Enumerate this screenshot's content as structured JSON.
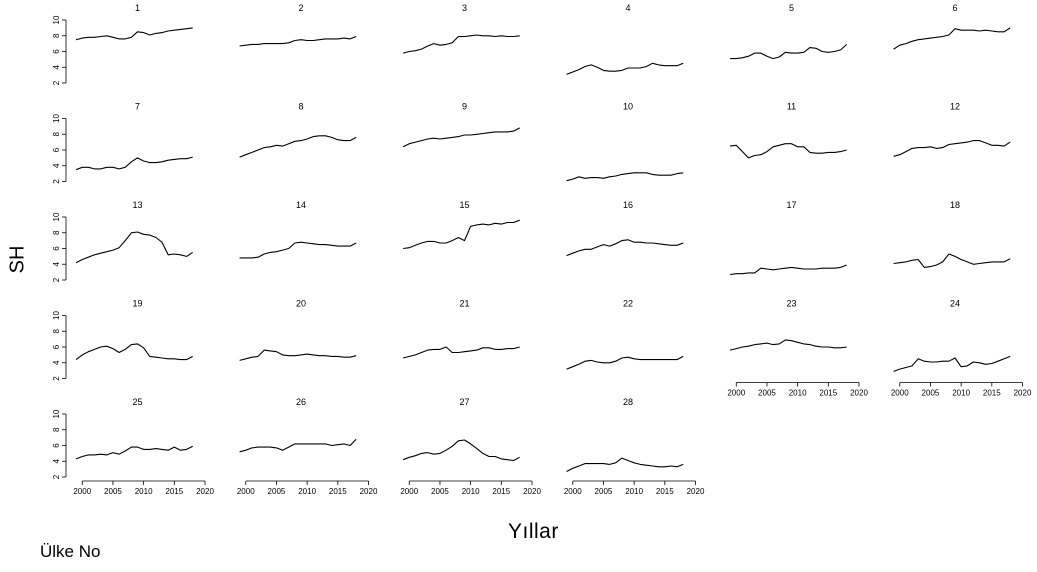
{
  "chart_data": {
    "type": "line",
    "ylabel": "SH",
    "xlabel": "Yıllar",
    "footer": "Ülke No",
    "ylim": [
      2,
      10
    ],
    "yticks": [
      2,
      4,
      6,
      8,
      10
    ],
    "xlim": [
      1998,
      2020
    ],
    "xticks": [
      2000,
      2005,
      2010,
      2015,
      2020
    ],
    "years": [
      1999,
      2000,
      2001,
      2002,
      2003,
      2004,
      2005,
      2006,
      2007,
      2008,
      2009,
      2010,
      2011,
      2012,
      2013,
      2014,
      2015,
      2016,
      2017,
      2018
    ],
    "panels": [
      {
        "label": "1",
        "values": [
          7.5,
          7.7,
          7.8,
          7.8,
          7.9,
          8.0,
          7.8,
          7.6,
          7.6,
          7.8,
          8.5,
          8.4,
          8.1,
          8.3,
          8.4,
          8.6,
          8.7,
          8.8,
          8.9,
          9.0
        ]
      },
      {
        "label": "2",
        "values": [
          6.7,
          6.8,
          6.9,
          6.9,
          7.0,
          7.0,
          7.0,
          7.0,
          7.1,
          7.4,
          7.5,
          7.4,
          7.4,
          7.5,
          7.6,
          7.6,
          7.6,
          7.7,
          7.6,
          7.9
        ]
      },
      {
        "label": "3",
        "values": [
          5.8,
          6.0,
          6.1,
          6.3,
          6.7,
          7.0,
          6.8,
          6.9,
          7.1,
          7.9,
          7.9,
          8.0,
          8.1,
          8.0,
          8.0,
          7.9,
          8.0,
          7.9,
          7.9,
          8.0
        ]
      },
      {
        "label": "4",
        "values": [
          3.1,
          3.4,
          3.7,
          4.1,
          4.3,
          4.0,
          3.6,
          3.5,
          3.5,
          3.6,
          3.9,
          3.9,
          3.9,
          4.1,
          4.5,
          4.3,
          4.2,
          4.2,
          4.2,
          4.5
        ]
      },
      {
        "label": "5",
        "values": [
          5.1,
          5.1,
          5.2,
          5.4,
          5.8,
          5.8,
          5.4,
          5.1,
          5.3,
          5.9,
          5.8,
          5.8,
          5.9,
          6.5,
          6.4,
          6.0,
          5.9,
          6.0,
          6.2,
          6.9
        ]
      },
      {
        "label": "6",
        "values": [
          6.3,
          6.8,
          7.0,
          7.3,
          7.5,
          7.6,
          7.7,
          7.8,
          7.9,
          8.1,
          8.9,
          8.7,
          8.7,
          8.7,
          8.6,
          8.7,
          8.6,
          8.5,
          8.5,
          9.0
        ]
      },
      {
        "label": "7",
        "values": [
          3.5,
          3.8,
          3.8,
          3.6,
          3.6,
          3.8,
          3.8,
          3.6,
          3.8,
          4.5,
          5.0,
          4.6,
          4.4,
          4.4,
          4.5,
          4.7,
          4.8,
          4.9,
          4.9,
          5.1
        ]
      },
      {
        "label": "8",
        "values": [
          5.1,
          5.4,
          5.7,
          6.0,
          6.3,
          6.4,
          6.6,
          6.5,
          6.8,
          7.1,
          7.2,
          7.4,
          7.7,
          7.8,
          7.8,
          7.6,
          7.3,
          7.2,
          7.2,
          7.6
        ]
      },
      {
        "label": "9",
        "values": [
          6.4,
          6.8,
          7.0,
          7.2,
          7.4,
          7.5,
          7.4,
          7.5,
          7.6,
          7.7,
          7.9,
          7.9,
          8.0,
          8.1,
          8.2,
          8.3,
          8.3,
          8.3,
          8.4,
          8.8
        ]
      },
      {
        "label": "10",
        "values": [
          2.1,
          2.3,
          2.6,
          2.4,
          2.5,
          2.5,
          2.4,
          2.6,
          2.7,
          2.9,
          3.0,
          3.1,
          3.1,
          3.1,
          2.9,
          2.8,
          2.8,
          2.8,
          3.0,
          3.1
        ]
      },
      {
        "label": "11",
        "values": [
          6.5,
          6.6,
          5.8,
          5.0,
          5.3,
          5.4,
          5.8,
          6.4,
          6.6,
          6.8,
          6.8,
          6.4,
          6.4,
          5.7,
          5.6,
          5.6,
          5.7,
          5.7,
          5.8,
          6.0
        ]
      },
      {
        "label": "12",
        "values": [
          5.2,
          5.4,
          5.8,
          6.2,
          6.3,
          6.3,
          6.4,
          6.2,
          6.3,
          6.7,
          6.8,
          6.9,
          7.0,
          7.2,
          7.2,
          6.9,
          6.6,
          6.6,
          6.5,
          7.0
        ]
      },
      {
        "label": "13",
        "values": [
          4.2,
          4.6,
          4.9,
          5.2,
          5.4,
          5.6,
          5.8,
          6.1,
          7.0,
          8.0,
          8.1,
          7.8,
          7.7,
          7.4,
          6.8,
          5.2,
          5.3,
          5.2,
          5.0,
          5.5
        ]
      },
      {
        "label": "14",
        "values": [
          4.8,
          4.8,
          4.8,
          4.9,
          5.3,
          5.5,
          5.6,
          5.8,
          6.0,
          6.7,
          6.8,
          6.7,
          6.6,
          6.5,
          6.5,
          6.4,
          6.3,
          6.3,
          6.3,
          6.7
        ]
      },
      {
        "label": "15",
        "values": [
          6.0,
          6.1,
          6.4,
          6.7,
          6.9,
          6.9,
          6.7,
          6.7,
          7.0,
          7.4,
          7.0,
          8.8,
          9.0,
          9.1,
          9.0,
          9.2,
          9.1,
          9.3,
          9.3,
          9.6
        ]
      },
      {
        "label": "16",
        "values": [
          5.1,
          5.4,
          5.7,
          5.9,
          5.9,
          6.2,
          6.5,
          6.3,
          6.6,
          7.0,
          7.1,
          6.8,
          6.8,
          6.7,
          6.7,
          6.6,
          6.5,
          6.4,
          6.4,
          6.7
        ]
      },
      {
        "label": "17",
        "values": [
          2.7,
          2.8,
          2.8,
          2.9,
          2.9,
          3.5,
          3.4,
          3.3,
          3.4,
          3.5,
          3.6,
          3.5,
          3.4,
          3.4,
          3.4,
          3.5,
          3.5,
          3.5,
          3.6,
          3.9
        ]
      },
      {
        "label": "18",
        "values": [
          4.1,
          4.2,
          4.3,
          4.5,
          4.6,
          3.6,
          3.7,
          3.9,
          4.3,
          5.3,
          5.0,
          4.6,
          4.3,
          4.0,
          4.1,
          4.2,
          4.3,
          4.3,
          4.3,
          4.7
        ]
      },
      {
        "label": "19",
        "values": [
          4.4,
          5.0,
          5.4,
          5.7,
          6.0,
          6.1,
          5.8,
          5.3,
          5.7,
          6.3,
          6.4,
          5.9,
          4.8,
          4.7,
          4.6,
          4.5,
          4.5,
          4.4,
          4.4,
          4.8
        ]
      },
      {
        "label": "20",
        "values": [
          4.3,
          4.5,
          4.7,
          4.8,
          5.6,
          5.5,
          5.4,
          5.0,
          4.9,
          4.9,
          5.0,
          5.1,
          5.0,
          4.9,
          4.9,
          4.8,
          4.8,
          4.7,
          4.7,
          4.9
        ]
      },
      {
        "label": "21",
        "values": [
          4.6,
          4.8,
          5.0,
          5.3,
          5.6,
          5.7,
          5.7,
          6.0,
          5.3,
          5.3,
          5.4,
          5.5,
          5.6,
          5.9,
          5.9,
          5.7,
          5.7,
          5.8,
          5.8,
          6.0
        ]
      },
      {
        "label": "22",
        "values": [
          3.2,
          3.5,
          3.8,
          4.2,
          4.3,
          4.1,
          4.0,
          4.0,
          4.2,
          4.6,
          4.7,
          4.5,
          4.4,
          4.4,
          4.4,
          4.4,
          4.4,
          4.4,
          4.4,
          4.8
        ]
      },
      {
        "label": "23",
        "values": [
          5.6,
          5.8,
          6.0,
          6.1,
          6.3,
          6.4,
          6.5,
          6.3,
          6.4,
          6.9,
          6.8,
          6.6,
          6.4,
          6.3,
          6.1,
          6.0,
          6.0,
          5.9,
          5.9,
          6.0
        ]
      },
      {
        "label": "24",
        "values": [
          2.9,
          3.2,
          3.4,
          3.6,
          4.5,
          4.2,
          4.1,
          4.1,
          4.2,
          4.2,
          4.6,
          3.5,
          3.6,
          4.1,
          4.0,
          3.8,
          3.9,
          4.2,
          4.5,
          4.8
        ]
      },
      {
        "label": "25",
        "values": [
          4.3,
          4.6,
          4.8,
          4.8,
          4.9,
          4.8,
          5.1,
          4.9,
          5.3,
          5.8,
          5.8,
          5.5,
          5.5,
          5.6,
          5.5,
          5.4,
          5.8,
          5.4,
          5.5,
          5.9
        ]
      },
      {
        "label": "26",
        "values": [
          5.2,
          5.4,
          5.7,
          5.8,
          5.8,
          5.8,
          5.7,
          5.4,
          5.8,
          6.2,
          6.2,
          6.2,
          6.2,
          6.2,
          6.2,
          6.0,
          6.1,
          6.2,
          6.0,
          6.8
        ]
      },
      {
        "label": "27",
        "values": [
          4.2,
          4.5,
          4.7,
          5.0,
          5.1,
          4.9,
          5.0,
          5.4,
          5.9,
          6.6,
          6.7,
          6.2,
          5.6,
          5.0,
          4.6,
          4.6,
          4.3,
          4.2,
          4.1,
          4.5
        ]
      },
      {
        "label": "28",
        "values": [
          2.7,
          3.1,
          3.4,
          3.7,
          3.7,
          3.7,
          3.7,
          3.6,
          3.8,
          4.4,
          4.1,
          3.8,
          3.6,
          3.5,
          3.4,
          3.3,
          3.3,
          3.4,
          3.3,
          3.6
        ]
      }
    ]
  }
}
